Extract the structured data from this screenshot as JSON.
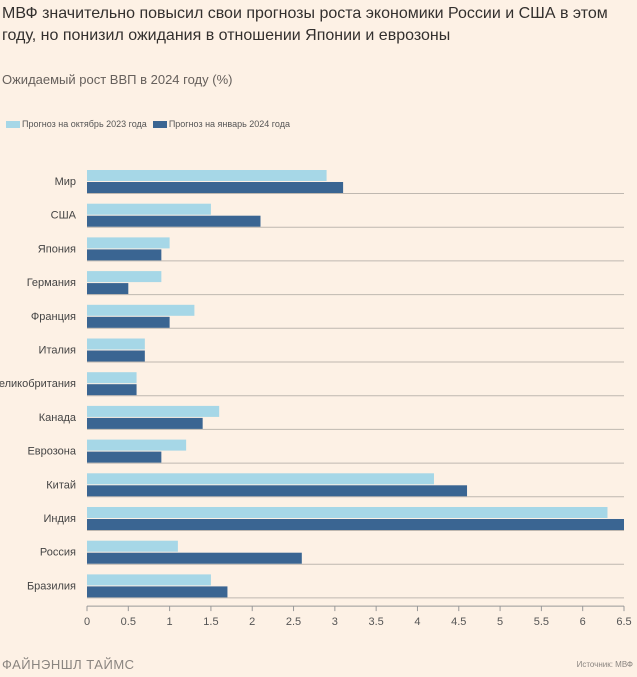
{
  "title": "МВФ значительно повысил свои прогнозы роста экономики России и США в этом году, но понизил ожидания в отношении Японии и еврозоны",
  "subtitle": "Ожидаемый рост ВВП в 2024 году (%)",
  "footer": {
    "brand": "ФАЙНЭНШЛ ТАЙМС",
    "source": "Источник: МВФ"
  },
  "colors": {
    "background": "#fdf1e5",
    "series_oct": "#a6d7e7",
    "series_jan": "#3a6592"
  },
  "chart_data": {
    "type": "bar",
    "orientation": "horizontal",
    "title": "Ожидаемый рост ВВП в 2024 году (%)",
    "categories": [
      "Мир",
      "США",
      "Япония",
      "Германия",
      "Франция",
      "Италия",
      "Великобритания",
      "Канада",
      "Еврозона",
      "Китай",
      "Индия",
      "Россия",
      "Бразилия"
    ],
    "series": [
      {
        "name": "Прогноз на октябрь 2023 года",
        "values": [
          2.9,
          1.5,
          1.0,
          0.9,
          1.3,
          0.7,
          0.6,
          1.6,
          1.2,
          4.2,
          6.3,
          1.1,
          1.5
        ]
      },
      {
        "name": "Прогноз на январь 2024 года",
        "values": [
          3.1,
          2.1,
          0.9,
          0.5,
          1.0,
          0.7,
          0.6,
          1.4,
          0.9,
          4.6,
          6.5,
          2.6,
          1.7
        ]
      }
    ],
    "xlim": [
      0,
      6.5
    ],
    "xticks": [
      "0",
      "0.5",
      "1",
      "1.5",
      "2",
      "2.5",
      "3",
      "3.5",
      "4",
      "4.5",
      "5",
      "5.5",
      "6",
      "6.5"
    ],
    "xlabel": "",
    "ylabel": "",
    "legend": "top-left",
    "grid": true
  }
}
